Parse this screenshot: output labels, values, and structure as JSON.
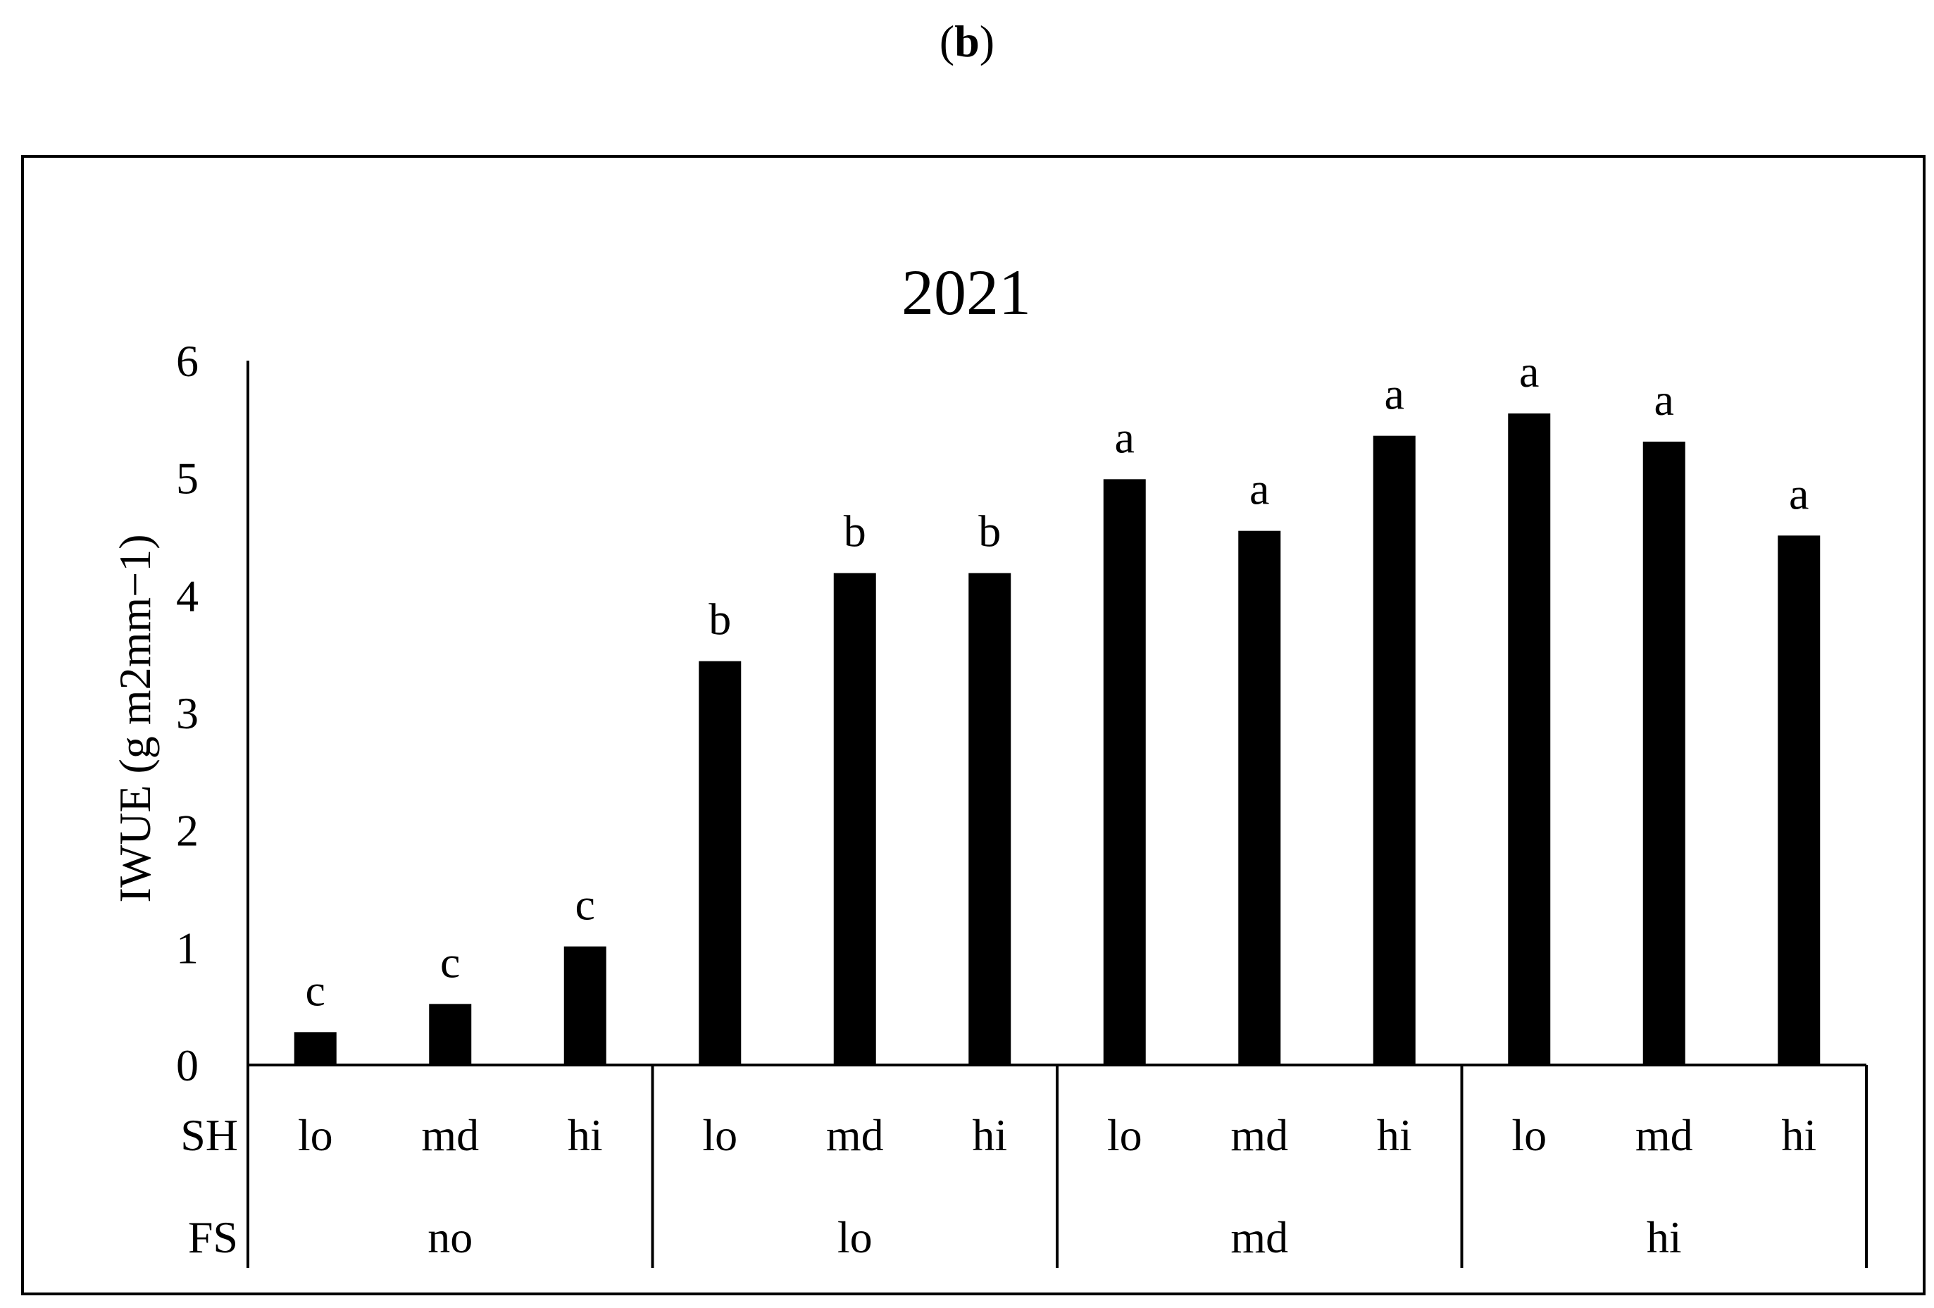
{
  "panel": {
    "open": "(",
    "letter": "b",
    "close": ")"
  },
  "chart_data": {
    "type": "bar",
    "title": "2021",
    "ylabel": "IWUE (g m2mm−1)",
    "xlabel": "",
    "ylim": [
      0,
      6
    ],
    "yticks": [
      "0",
      "1",
      "2",
      "3",
      "4",
      "5",
      "6"
    ],
    "grid": false,
    "legend": "none",
    "bar_color": "#000000",
    "row_labels": {
      "sh": "SH",
      "fs": "FS"
    },
    "categories": [
      "lo",
      "md",
      "hi",
      "lo",
      "md",
      "hi",
      "lo",
      "md",
      "hi",
      "lo",
      "md",
      "hi"
    ],
    "groups": [
      "no",
      "lo",
      "md",
      "hi"
    ],
    "values": [
      0.28,
      0.52,
      1.01,
      3.44,
      4.19,
      4.19,
      4.99,
      4.55,
      5.36,
      5.55,
      5.31,
      4.51
    ],
    "letters": [
      "c",
      "c",
      "c",
      "b",
      "b",
      "b",
      "a",
      "a",
      "a",
      "a",
      "a",
      "a"
    ]
  }
}
